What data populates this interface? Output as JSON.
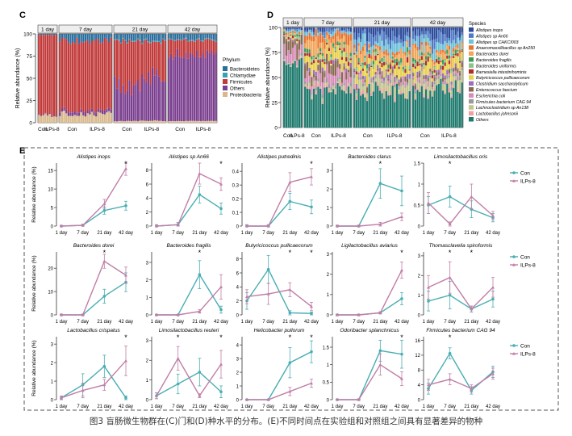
{
  "caption": "图3 盲肠微生物群在(C)门和(D)种水平的分布。(E)不同时间点在实验组和对照组之间具有显著差异的物种",
  "colors": {
    "con": "#4aaeb3",
    "ilps": "#c07ea6",
    "bacteroidetes": "#2c6f9e",
    "chlamydiae": "#3aa0b5",
    "firmicutes": "#c23a3a",
    "others": "#7b3f8f",
    "proteobacteria": "#d9b98c"
  },
  "panel_c": {
    "label": "C",
    "y_label": "Relative abundance (%)",
    "y_ticks": [
      "0",
      "25",
      "50",
      "75",
      "100"
    ],
    "strips": [
      "1 day",
      "7 day",
      "21 day",
      "42 day"
    ],
    "x_groups": [
      [
        "Con",
        "ILPs-8"
      ],
      [
        "Con",
        "ILPs-8"
      ],
      [
        "Con",
        "ILPs-8"
      ],
      [
        "Con",
        "ILPs-8"
      ]
    ],
    "legend_title": "Phylum",
    "legend": [
      "Bacteroidetes",
      "Chlamydiae",
      "Firmicutes",
      "Others",
      "Proteobacteria"
    ]
  },
  "panel_d": {
    "label": "D",
    "y_label": "Relative abundance (%)",
    "y_ticks": [
      "0",
      "25",
      "50",
      "75",
      "100"
    ],
    "strips": [
      "1 day",
      "7 day",
      "21 day",
      "42 day"
    ],
    "x_groups": [
      [
        "Con",
        "ILPs-8"
      ],
      [
        "Con",
        "ILPs-8"
      ],
      [
        "Con",
        "ILPs-8"
      ],
      [
        "Con",
        "ILPs-8"
      ]
    ],
    "legend_title": "Species",
    "legend": [
      {
        "name": "Alistipes inops",
        "color": "#2b4a9b"
      },
      {
        "name": "Alistipes sp An66",
        "color": "#4f79c4"
      },
      {
        "name": "Alistipes sp CHKCI003",
        "color": "#6dc1d9"
      },
      {
        "name": "Anaeromassilibacillus sp An250",
        "color": "#e8742f"
      },
      {
        "name": "Bacteroides dorei",
        "color": "#f2a65a"
      },
      {
        "name": "Bacteroides fragilis",
        "color": "#3f9a5a"
      },
      {
        "name": "Bacteroides uniformis",
        "color": "#8bc58b"
      },
      {
        "name": "Barnesiella intestinihominis",
        "color": "#b22a2a"
      },
      {
        "name": "Butyricicoccus pullicaecorum",
        "color": "#e8d24a"
      },
      {
        "name": "Clostridium saccharolyticum",
        "color": "#9a6fbf"
      },
      {
        "name": "Enterococcus faecium",
        "color": "#8a6a52"
      },
      {
        "name": "Escherichia coli",
        "color": "#d78cb9"
      },
      {
        "name": "Firmicutes bacterium CAG 94",
        "color": "#9a9a9a"
      },
      {
        "name": "Lachnoclostridium sp An138",
        "color": "#c3c48e"
      },
      {
        "name": "Lactobacillus johnsonii",
        "color": "#f0a0a0"
      },
      {
        "name": "Others",
        "color": "#1f7a6e"
      }
    ]
  },
  "panel_e": {
    "label": "E",
    "legend": [
      "Con",
      "ILPs-8"
    ],
    "y_label": "Relative abundance (%)",
    "x_ticks": [
      "1 day",
      "7 day",
      "21 day",
      "42 day"
    ],
    "significance_mark": "*"
  },
  "chart_data": [
    {
      "type": "line",
      "title": "Alistipes inops",
      "x": [
        "1 day",
        "7 day",
        "21 day",
        "42 day"
      ],
      "yticks": [
        0,
        5,
        10,
        15
      ],
      "ylim": [
        0,
        17
      ],
      "series": [
        {
          "name": "Con",
          "values": [
            0,
            0.2,
            4.2,
            5.5
          ],
          "err": [
            0.2,
            0.3,
            1.0,
            1.2
          ]
        },
        {
          "name": "ILPs-8",
          "values": [
            0,
            0.2,
            6.0,
            15.5
          ],
          "err": [
            0.2,
            0.3,
            1.2,
            1.8
          ]
        }
      ],
      "stars": [
        3
      ]
    },
    {
      "type": "line",
      "title": "Alistipes sp An66",
      "x": [
        "1 day",
        "7 day",
        "21 day",
        "42 day"
      ],
      "yticks": [
        0,
        2,
        4,
        6,
        8
      ],
      "ylim": [
        0,
        9
      ],
      "series": [
        {
          "name": "Con",
          "values": [
            0,
            0.2,
            4.5,
            2.5
          ],
          "err": [
            0.2,
            0.3,
            1.2,
            0.8
          ]
        },
        {
          "name": "ILPs-8",
          "values": [
            0,
            0.2,
            7.5,
            6.0
          ],
          "err": [
            0.2,
            0.3,
            1.5,
            0.9
          ]
        }
      ],
      "stars": [
        3
      ]
    },
    {
      "type": "line",
      "title": "Alistipes putredinis",
      "x": [
        "1 day",
        "7 day",
        "21 day",
        "42 day"
      ],
      "yticks": [
        0,
        0.1,
        0.2,
        0.3,
        0.4
      ],
      "ylim": [
        0,
        0.46
      ],
      "series": [
        {
          "name": "Con",
          "values": [
            0,
            0,
            0.18,
            0.14
          ],
          "err": [
            0.01,
            0.01,
            0.06,
            0.05
          ]
        },
        {
          "name": "ILPs-8",
          "values": [
            0,
            0,
            0.32,
            0.36
          ],
          "err": [
            0.01,
            0.01,
            0.07,
            0.06
          ]
        }
      ],
      "stars": [
        3
      ]
    },
    {
      "type": "line",
      "title": "Bacteroides clarus",
      "x": [
        "1 day",
        "7 day",
        "21 day",
        "42 day"
      ],
      "yticks": [
        0,
        1,
        2,
        3
      ],
      "ylim": [
        0,
        3.4
      ],
      "series": [
        {
          "name": "Con",
          "values": [
            0,
            0,
            2.3,
            1.9
          ],
          "err": [
            0.05,
            0.05,
            0.8,
            0.8
          ]
        },
        {
          "name": "ILPs-8",
          "values": [
            0,
            0,
            0.1,
            0.5
          ],
          "err": [
            0.05,
            0.05,
            0.1,
            0.2
          ]
        }
      ],
      "stars": [
        2
      ]
    },
    {
      "type": "line",
      "title": "Limosilactobacillus oris",
      "x": [
        "1 day",
        "7 day",
        "21 day",
        "42 day"
      ],
      "yticks": [
        0,
        0.5,
        1.0,
        1.5
      ],
      "ylim": [
        0,
        1.5
      ],
      "series": [
        {
          "name": "Con",
          "values": [
            0.5,
            0.7,
            0.4,
            0.2
          ],
          "err": [
            0.2,
            0.25,
            0.2,
            0.1
          ]
        },
        {
          "name": "ILPs-8",
          "values": [
            0.55,
            0.05,
            0.7,
            0.25
          ],
          "err": [
            0.25,
            0.05,
            0.3,
            0.1
          ]
        }
      ],
      "stars": [
        1
      ]
    },
    {
      "type": "line",
      "title": "Bacteroides dorei",
      "x": [
        "1 day",
        "7 day",
        "21 day",
        "42 day"
      ],
      "yticks": [
        0,
        10,
        20
      ],
      "ylim": [
        0,
        27
      ],
      "series": [
        {
          "name": "Con",
          "values": [
            0,
            0,
            8,
            14
          ],
          "err": [
            0.3,
            0.3,
            3,
            4
          ]
        },
        {
          "name": "ILPs-8",
          "values": [
            0,
            0,
            23,
            17
          ],
          "err": [
            0.3,
            0.3,
            3,
            3.5
          ]
        }
      ],
      "stars": [
        2
      ]
    },
    {
      "type": "line",
      "title": "Bacteroides fragilis",
      "x": [
        "1 day",
        "7 day",
        "21 day",
        "42 day"
      ],
      "yticks": [
        0,
        1,
        2,
        3
      ],
      "ylim": [
        0,
        3.6
      ],
      "series": [
        {
          "name": "Con",
          "values": [
            0,
            0,
            2.3,
            0.3
          ],
          "err": [
            0.03,
            0.03,
            0.8,
            0.2
          ]
        },
        {
          "name": "ILPs-8",
          "values": [
            0,
            0,
            0.2,
            1.6
          ],
          "err": [
            0.03,
            0.03,
            0.1,
            0.7
          ]
        }
      ],
      "stars": [
        2
      ]
    },
    {
      "type": "line",
      "title": "Butyricicoccus pullicaecorum",
      "x": [
        "1 day",
        "7 day",
        "21 day",
        "42 day"
      ],
      "yticks": [
        0,
        2,
        4,
        6,
        8
      ],
      "ylim": [
        0,
        9
      ],
      "series": [
        {
          "name": "Con",
          "values": [
            2,
            6.5,
            0.3,
            0.2
          ],
          "err": [
            1.2,
            2.0,
            0.3,
            0.2
          ]
        },
        {
          "name": "ILPs-8",
          "values": [
            2.6,
            3.0,
            3.6,
            1.2
          ],
          "err": [
            1.0,
            1.5,
            1.0,
            0.6
          ]
        }
      ],
      "stars": [
        2,
        3
      ]
    },
    {
      "type": "line",
      "title": "Ligilactobacillus aviarius",
      "x": [
        "1 day",
        "7 day",
        "21 day",
        "42 day"
      ],
      "yticks": [
        0,
        1,
        2,
        3
      ],
      "ylim": [
        0,
        3.1
      ],
      "series": [
        {
          "name": "Con",
          "values": [
            0,
            0,
            0.1,
            0.8
          ],
          "err": [
            0.03,
            0.03,
            0.05,
            0.3
          ]
        },
        {
          "name": "ILPs-8",
          "values": [
            0,
            0,
            0.1,
            2.2
          ],
          "err": [
            0.03,
            0.03,
            0.05,
            0.4
          ]
        }
      ],
      "stars": [
        3
      ]
    },
    {
      "type": "line",
      "title": "Thomasclavelia spiroformis",
      "x": [
        "1 day",
        "7 day",
        "21 day",
        "42 day"
      ],
      "yticks": [
        0,
        1,
        2,
        3
      ],
      "ylim": [
        0,
        3.2
      ],
      "series": [
        {
          "name": "Con",
          "values": [
            0.7,
            1.0,
            0.3,
            0.8
          ],
          "err": [
            0.5,
            0.7,
            0.15,
            0.4
          ]
        },
        {
          "name": "ILPs-8",
          "values": [
            1.4,
            1.9,
            0.3,
            1.4
          ],
          "err": [
            0.6,
            0.8,
            0.15,
            0.5
          ]
        }
      ],
      "stars": [
        1,
        2
      ]
    },
    {
      "type": "line",
      "title": "Lactobacillus crispatus",
      "x": [
        "1 day",
        "7 day",
        "21 day",
        "42 day"
      ],
      "yticks": [
        0,
        1,
        2,
        3
      ],
      "ylim": [
        0,
        3.4
      ],
      "series": [
        {
          "name": "Con",
          "values": [
            0.1,
            0.8,
            1.8,
            0.1
          ],
          "err": [
            0.1,
            0.6,
            0.6,
            0.1
          ]
        },
        {
          "name": "ILPs-8",
          "values": [
            0.1,
            0.5,
            0.8,
            2.1
          ],
          "err": [
            0.1,
            0.4,
            0.3,
            0.8
          ]
        }
      ],
      "stars": [
        3
      ]
    },
    {
      "type": "line",
      "title": "Limosilactobacillus reuteri",
      "x": [
        "1 day",
        "7 day",
        "21 day",
        "42 day"
      ],
      "yticks": [
        0,
        1,
        2,
        3
      ],
      "ylim": [
        0,
        3.2
      ],
      "series": [
        {
          "name": "Con",
          "values": [
            0.2,
            0.8,
            1.4,
            0.4
          ],
          "err": [
            0.15,
            0.5,
            0.7,
            0.3
          ]
        },
        {
          "name": "ILPs-8",
          "values": [
            0.2,
            2.1,
            0.2,
            1.8
          ],
          "err": [
            0.15,
            0.6,
            0.1,
            0.7
          ]
        }
      ],
      "stars": [
        1,
        3
      ]
    },
    {
      "type": "line",
      "title": "Helicobacter pullorum",
      "x": [
        "1 day",
        "7 day",
        "21 day",
        "42 day"
      ],
      "yticks": [
        0,
        1,
        2,
        3,
        4
      ],
      "ylim": [
        0,
        4.6
      ],
      "series": [
        {
          "name": "Con",
          "values": [
            0,
            0,
            2.7,
            3.5
          ],
          "err": [
            0.03,
            0.03,
            1.1,
            0.8
          ]
        },
        {
          "name": "ILPs-8",
          "values": [
            0,
            0,
            0.6,
            1.2
          ],
          "err": [
            0.03,
            0.03,
            0.3,
            0.3
          ]
        }
      ],
      "stars": [
        2,
        3
      ]
    },
    {
      "type": "line",
      "title": "Odoribacter splanchnicus",
      "x": [
        "1 day",
        "7 day",
        "21 day",
        "42 day"
      ],
      "yticks": [
        0,
        0.5,
        1.0,
        1.5
      ],
      "ylim": [
        0,
        1.8
      ],
      "series": [
        {
          "name": "Con",
          "values": [
            0,
            0,
            1.4,
            1.3
          ],
          "err": [
            0.02,
            0.02,
            0.3,
            0.4
          ]
        },
        {
          "name": "ILPs-8",
          "values": [
            0,
            0,
            1.0,
            0.6
          ],
          "err": [
            0.02,
            0.02,
            0.3,
            0.2
          ]
        }
      ],
      "stars": [
        3
      ]
    },
    {
      "type": "line",
      "title": "Firmicutes bacterium CAG 94",
      "x": [
        "1 day",
        "7 day",
        "21 day",
        "42 day"
      ],
      "yticks": [
        0,
        4,
        8,
        12,
        16
      ],
      "ylim": [
        0,
        17
      ],
      "series": [
        {
          "name": "Con",
          "values": [
            3,
            12.5,
            2.5,
            7.5
          ],
          "err": [
            1.5,
            1.5,
            1.0,
            1.5
          ]
        },
        {
          "name": "ILPs-8",
          "values": [
            4,
            5.5,
            3,
            7
          ],
          "err": [
            1.5,
            1.5,
            1.0,
            1.5
          ]
        }
      ],
      "stars": [
        1
      ]
    }
  ]
}
